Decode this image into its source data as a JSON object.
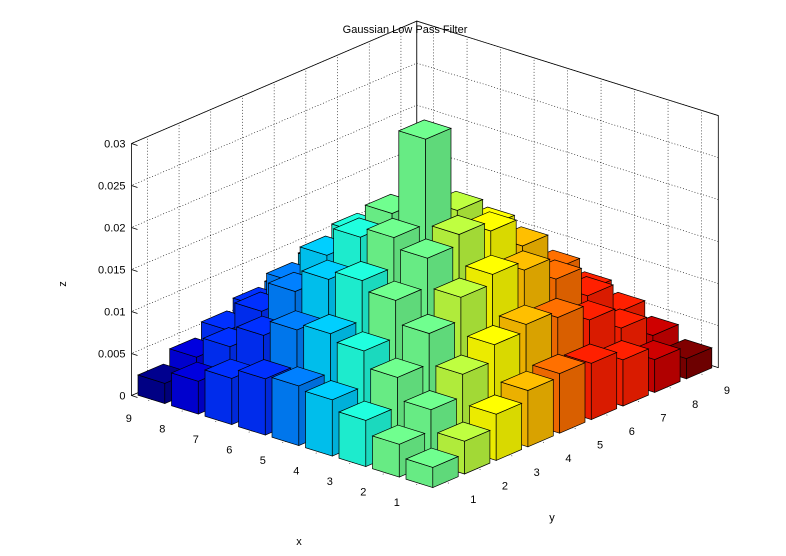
{
  "chart_data": {
    "type": "bar3",
    "title": "Gaussian Low Pass Filter",
    "xlabel": "x",
    "ylabel": "y",
    "zlabel": "z",
    "x_ticks": [
      "1",
      "2",
      "3",
      "4",
      "5",
      "6",
      "7",
      "8",
      "9"
    ],
    "y_ticks": [
      "1",
      "2",
      "3",
      "4",
      "5",
      "6",
      "7",
      "8",
      "9"
    ],
    "z_ticks": [
      "0",
      "0.005",
      "0.01",
      "0.015",
      "0.02",
      "0.025",
      "0.03"
    ],
    "zlim": [
      0,
      0.03
    ],
    "grid": true,
    "colormap": "jet",
    "series_colors": [
      "#00008F",
      "#0000DF",
      "#0030FF",
      "#0080FF",
      "#00CFFF",
      "#20FFDF",
      "#70FF8F",
      "#BFFF40",
      "#FFFF00",
      "#FFBF00",
      "#FF7000",
      "#FF2000",
      "#CF0000",
      "#800000"
    ],
    "values": [
      [
        0.0024,
        0.0039,
        0.0055,
        0.0067,
        0.0071,
        0.0067,
        0.0055,
        0.0039,
        0.0024
      ],
      [
        0.0039,
        0.0064,
        0.009,
        0.0109,
        0.0117,
        0.0109,
        0.009,
        0.0064,
        0.0039
      ],
      [
        0.0055,
        0.009,
        0.0126,
        0.0153,
        0.0164,
        0.0153,
        0.0126,
        0.009,
        0.0055
      ],
      [
        0.0067,
        0.0109,
        0.0153,
        0.0187,
        0.0199,
        0.0187,
        0.0153,
        0.0109,
        0.0067
      ],
      [
        0.0071,
        0.0117,
        0.0164,
        0.0199,
        0.03,
        0.0199,
        0.0164,
        0.0117,
        0.0071
      ],
      [
        0.0067,
        0.0109,
        0.0153,
        0.0187,
        0.0199,
        0.0187,
        0.0153,
        0.0109,
        0.0067
      ],
      [
        0.0055,
        0.009,
        0.0126,
        0.0153,
        0.0164,
        0.0153,
        0.0126,
        0.009,
        0.0055
      ],
      [
        0.0039,
        0.0064,
        0.009,
        0.0109,
        0.0117,
        0.0109,
        0.009,
        0.0064,
        0.0039
      ],
      [
        0.0024,
        0.0039,
        0.0055,
        0.0067,
        0.0071,
        0.0067,
        0.0055,
        0.0039,
        0.0024
      ]
    ]
  }
}
